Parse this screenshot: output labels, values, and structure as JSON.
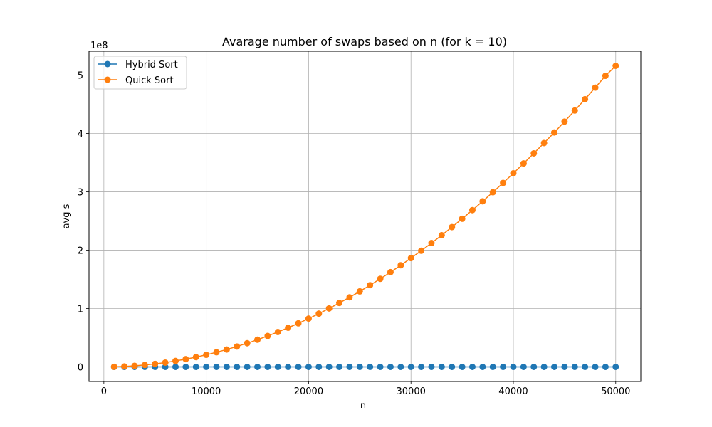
{
  "chart_data": {
    "type": "line",
    "title": "Avarage number of swaps based on n (for k = 10)",
    "xlabel": "n",
    "ylabel": "avg s",
    "y_offset_label": "1e8",
    "xlim": [
      -1450,
      52450
    ],
    "ylim": [
      -25000000,
      541000000
    ],
    "xticks": [
      0,
      10000,
      20000,
      30000,
      40000,
      50000
    ],
    "xtick_labels": [
      "0",
      "10000",
      "20000",
      "30000",
      "40000",
      "50000"
    ],
    "yticks": [
      0,
      100000000,
      200000000,
      300000000,
      400000000,
      500000000
    ],
    "ytick_labels": [
      "0",
      "1",
      "2",
      "3",
      "4",
      "5"
    ],
    "grid": true,
    "legend_position": "upper left",
    "x": [
      1000,
      2000,
      3000,
      4000,
      5000,
      6000,
      7000,
      8000,
      9000,
      10000,
      11000,
      12000,
      13000,
      14000,
      15000,
      16000,
      17000,
      18000,
      19000,
      20000,
      21000,
      22000,
      23000,
      24000,
      25000,
      26000,
      27000,
      28000,
      29000,
      30000,
      31000,
      32000,
      33000,
      34000,
      35000,
      36000,
      37000,
      38000,
      39000,
      40000,
      41000,
      42000,
      43000,
      44000,
      45000,
      46000,
      47000,
      48000,
      49000,
      50000
    ],
    "series": [
      {
        "name": "Hybrid Sort",
        "color": "#1f77b4",
        "values": [
          0,
          0,
          0,
          0,
          0,
          0,
          0,
          0,
          0,
          0,
          0,
          0,
          0,
          0,
          0,
          0,
          0,
          0,
          0,
          0,
          0,
          0,
          0,
          0,
          0,
          0,
          0,
          0,
          0,
          0,
          0,
          0,
          0,
          0,
          0,
          0,
          0,
          0,
          0,
          0,
          0,
          0,
          0,
          0,
          0,
          0,
          0,
          0,
          0,
          0
        ]
      },
      {
        "name": "Quick Sort",
        "color": "#ff7f0e",
        "values": [
          200000,
          800000,
          1900000,
          3300000,
          5200000,
          7400000,
          10200000,
          13300000,
          16800000,
          20700000,
          25100000,
          29800000,
          35000000,
          40600000,
          46600000,
          53000000,
          59800000,
          67100000,
          74700000,
          82800000,
          91300000,
          100200000,
          109600000,
          119300000,
          129400000,
          140000000,
          151000000,
          162400000,
          174200000,
          186500000,
          199100000,
          212200000,
          225700000,
          239600000,
          253900000,
          268700000,
          283800000,
          299400000,
          315400000,
          331800000,
          348700000,
          366000000,
          383700000,
          401800000,
          420400000,
          439400000,
          458800000,
          478700000,
          498900000,
          516000000
        ]
      }
    ]
  }
}
